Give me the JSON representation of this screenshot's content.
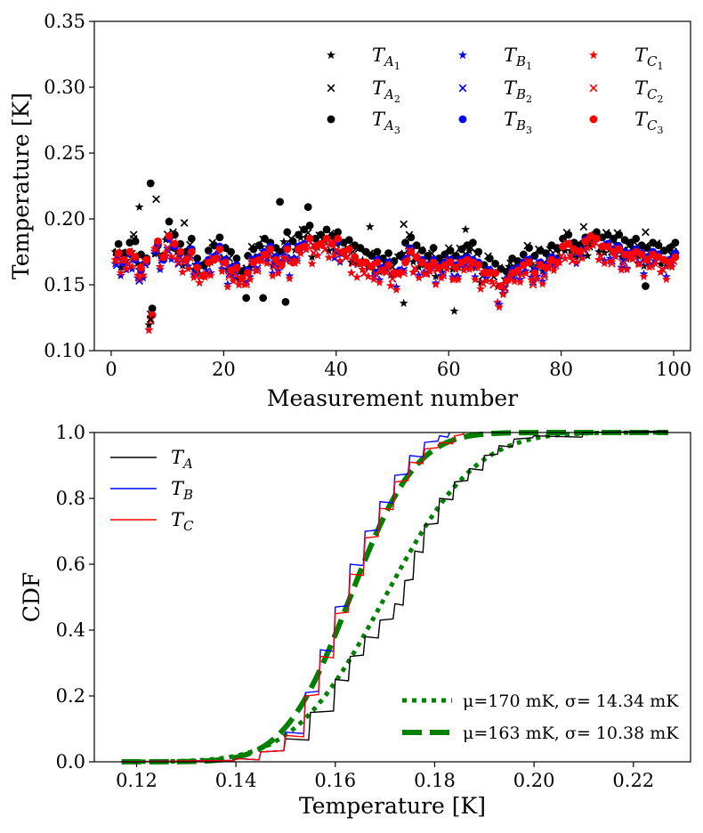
{
  "chart_data": [
    {
      "type": "scatter",
      "xlabel": "Measurement number",
      "ylabel": "Temperature [K]",
      "xlim": [
        -3,
        103
      ],
      "ylim": [
        0.1,
        0.35
      ],
      "xticks": [
        0,
        20,
        40,
        60,
        80,
        100
      ],
      "yticks": [
        0.1,
        0.15,
        0.2,
        0.25,
        0.3,
        0.35
      ],
      "xtick_labels": [
        "0",
        "20",
        "40",
        "60",
        "80",
        "100"
      ],
      "ytick_labels": [
        "0.10",
        "0.15",
        "0.20",
        "0.25",
        "0.30",
        "0.35"
      ],
      "legend": [
        {
          "sym": "T",
          "sub": "A",
          "subsub": "1",
          "marker": "star",
          "color": "#000000"
        },
        {
          "sym": "T",
          "sub": "A",
          "subsub": "2",
          "marker": "x",
          "color": "#000000"
        },
        {
          "sym": "T",
          "sub": "A",
          "subsub": "3",
          "marker": "dot",
          "color": "#000000"
        },
        {
          "sym": "T",
          "sub": "B",
          "subsub": "1",
          "marker": "star",
          "color": "#0000ff"
        },
        {
          "sym": "T",
          "sub": "B",
          "subsub": "2",
          "marker": "x",
          "color": "#0000ff"
        },
        {
          "sym": "T",
          "sub": "B",
          "subsub": "3",
          "marker": "dot",
          "color": "#0000ff"
        },
        {
          "sym": "T",
          "sub": "C",
          "subsub": "1",
          "marker": "star",
          "color": "#ff0000"
        },
        {
          "sym": "T",
          "sub": "C",
          "subsub": "2",
          "marker": "x",
          "color": "#ff0000"
        },
        {
          "sym": "T",
          "sub": "C",
          "subsub": "3",
          "marker": "dot",
          "color": "#ff0000"
        }
      ],
      "series": [
        {
          "name": "A",
          "color": "#000000",
          "values": [
            0.171,
            0.164,
            0.172,
            0.173,
            0.163,
            0.16,
            0.122,
            0.17,
            0.162,
            0.188,
            0.178,
            0.171,
            0.165,
            0.175,
            0.16,
            0.155,
            0.166,
            0.17,
            0.176,
            0.168,
            0.165,
            0.16,
            0.15,
            0.162,
            0.167,
            0.17,
            0.175,
            0.172,
            0.168,
            0.165,
            0.18,
            0.173,
            0.178,
            0.182,
            0.185,
            0.175,
            0.178,
            0.182,
            0.177,
            0.18,
            0.172,
            0.174,
            0.17,
            0.168,
            0.165,
            0.162,
            0.165,
            0.16,
            0.164,
            0.158,
            0.162,
            0.172,
            0.176,
            0.17,
            0.166,
            0.162,
            0.168,
            0.16,
            0.163,
            0.166,
            0.162,
            0.167,
            0.17,
            0.172,
            0.165,
            0.155,
            0.16,
            0.156,
            0.152,
            0.15,
            0.16,
            0.158,
            0.163,
            0.168,
            0.162,
            0.166,
            0.164,
            0.17,
            0.168,
            0.175,
            0.178,
            0.172,
            0.17,
            0.176,
            0.172,
            0.18,
            0.176,
            0.178,
            0.175,
            0.178,
            0.174,
            0.172,
            0.175,
            0.17,
            0.168,
            0.172,
            0.17,
            0.166,
            0.168,
            0.172
          ],
          "offsets": [
            [
              0,
              0.004
            ],
            [
              0.006,
              -0.006
            ],
            [
              0.01,
              0
            ]
          ]
        },
        {
          "name": "B",
          "color": "#0000ff",
          "values": [
            0.162,
            0.158,
            0.165,
            0.16,
            0.152,
            0.158,
            0.118,
            0.172,
            0.16,
            0.176,
            0.17,
            0.165,
            0.16,
            0.168,
            0.156,
            0.148,
            0.16,
            0.162,
            0.17,
            0.16,
            0.154,
            0.156,
            0.146,
            0.152,
            0.16,
            0.162,
            0.166,
            0.17,
            0.162,
            0.158,
            0.17,
            0.16,
            0.17,
            0.172,
            0.176,
            0.17,
            0.172,
            0.176,
            0.172,
            0.174,
            0.165,
            0.168,
            0.162,
            0.158,
            0.158,
            0.155,
            0.16,
            0.154,
            0.158,
            0.15,
            0.152,
            0.16,
            0.168,
            0.162,
            0.16,
            0.156,
            0.16,
            0.155,
            0.158,
            0.16,
            0.156,
            0.16,
            0.162,
            0.16,
            0.158,
            0.15,
            0.152,
            0.15,
            0.14,
            0.145,
            0.152,
            0.154,
            0.158,
            0.16,
            0.152,
            0.158,
            0.156,
            0.162,
            0.16,
            0.17,
            0.172,
            0.168,
            0.165,
            0.175,
            0.178,
            0.176,
            0.17,
            0.172,
            0.168,
            0.17,
            0.166,
            0.165,
            0.168,
            0.165,
            0.162,
            0.166,
            0.164,
            0.16,
            0.16,
            0.165
          ],
          "offsets": [
            [
              0,
              0.004
            ],
            [
              0.005,
              -0.005
            ],
            [
              0.009,
              0
            ]
          ]
        },
        {
          "name": "C",
          "color": "#ff0000",
          "values": [
            0.165,
            0.16,
            0.166,
            0.162,
            0.154,
            0.16,
            0.118,
            0.174,
            0.162,
            0.178,
            0.172,
            0.166,
            0.16,
            0.166,
            0.154,
            0.148,
            0.158,
            0.16,
            0.168,
            0.158,
            0.152,
            0.154,
            0.146,
            0.15,
            0.158,
            0.16,
            0.164,
            0.168,
            0.16,
            0.156,
            0.168,
            0.158,
            0.168,
            0.17,
            0.176,
            0.17,
            0.172,
            0.176,
            0.172,
            0.176,
            0.166,
            0.168,
            0.162,
            0.158,
            0.158,
            0.155,
            0.158,
            0.152,
            0.156,
            0.15,
            0.15,
            0.158,
            0.166,
            0.162,
            0.158,
            0.155,
            0.158,
            0.154,
            0.156,
            0.158,
            0.154,
            0.158,
            0.16,
            0.158,
            0.156,
            0.15,
            0.15,
            0.15,
            0.14,
            0.144,
            0.15,
            0.152,
            0.156,
            0.158,
            0.15,
            0.156,
            0.154,
            0.16,
            0.158,
            0.17,
            0.172,
            0.168,
            0.166,
            0.174,
            0.178,
            0.176,
            0.17,
            0.17,
            0.166,
            0.168,
            0.164,
            0.164,
            0.166,
            0.164,
            0.16,
            0.164,
            0.162,
            0.16,
            0.158,
            0.162
          ],
          "offsets": [
            [
              0,
              0.004
            ],
            [
              0.005,
              -0.005
            ],
            [
              0.009,
              0
            ]
          ]
        }
      ],
      "outliers": [
        {
          "x": 4,
          "y": 0.188,
          "m": "x",
          "c": "#000000"
        },
        {
          "x": 5,
          "y": 0.209,
          "m": "star",
          "c": "#000000"
        },
        {
          "x": 7,
          "y": 0.227,
          "m": "dot",
          "c": "#000000"
        },
        {
          "x": 8,
          "y": 0.215,
          "m": "x",
          "c": "#000000"
        },
        {
          "x": 7,
          "y": 0.124,
          "m": "x",
          "c": "#000000"
        },
        {
          "x": 13,
          "y": 0.197,
          "m": "x",
          "c": "#000000"
        },
        {
          "x": 30,
          "y": 0.213,
          "m": "dot",
          "c": "#000000"
        },
        {
          "x": 35,
          "y": 0.209,
          "m": "dot",
          "c": "#000000"
        },
        {
          "x": 31,
          "y": 0.137,
          "m": "dot",
          "c": "#000000"
        },
        {
          "x": 27,
          "y": 0.14,
          "m": "dot",
          "c": "#000000"
        },
        {
          "x": 24,
          "y": 0.14,
          "m": "dot",
          "c": "#000000"
        },
        {
          "x": 52,
          "y": 0.196,
          "m": "x",
          "c": "#000000"
        },
        {
          "x": 52,
          "y": 0.136,
          "m": "star",
          "c": "#000000"
        },
        {
          "x": 61,
          "y": 0.13,
          "m": "star",
          "c": "#000000"
        },
        {
          "x": 63,
          "y": 0.192,
          "m": "star",
          "c": "#000000"
        },
        {
          "x": 95,
          "y": 0.149,
          "m": "dot",
          "c": "#000000"
        },
        {
          "x": 95,
          "y": 0.19,
          "m": "x",
          "c": "#000000"
        },
        {
          "x": 84,
          "y": 0.194,
          "m": "x",
          "c": "#000000"
        },
        {
          "x": 46,
          "y": 0.194,
          "m": "star",
          "c": "#000000"
        },
        {
          "x": 69,
          "y": 0.135,
          "m": "star",
          "c": "#0000ff"
        },
        {
          "x": 69,
          "y": 0.133,
          "m": "star",
          "c": "#ff0000"
        }
      ]
    },
    {
      "type": "line",
      "xlabel": "Temperature [K]",
      "ylabel": "CDF",
      "xlim": [
        0.1115,
        0.2315
      ],
      "ylim": [
        0.0,
        1.0
      ],
      "xticks": [
        0.12,
        0.14,
        0.16,
        0.18,
        0.2,
        0.22
      ],
      "yticks": [
        0.0,
        0.2,
        0.4,
        0.6,
        0.8,
        1.0
      ],
      "xtick_labels": [
        "0.12",
        "0.14",
        "0.16",
        "0.18",
        "0.20",
        "0.22"
      ],
      "ytick_labels": [
        "0.0",
        "0.2",
        "0.4",
        "0.6",
        "0.8",
        "1.0"
      ],
      "legend_left": [
        {
          "sym": "T",
          "sub": "A",
          "color": "#000000"
        },
        {
          "sym": "T",
          "sub": "B",
          "color": "#0000ff"
        },
        {
          "sym": "T",
          "sub": "C",
          "color": "#ff0000"
        }
      ],
      "legend_right": [
        {
          "label": "μ=170 mK, σ= 14.34 mK",
          "style": "dotted"
        },
        {
          "label": "μ=163 mK, σ= 10.38 mK",
          "style": "dashed"
        }
      ],
      "empirical": [
        {
          "name": "T_A",
          "color": "#000000",
          "points": [
            [
              0.117,
              0
            ],
            [
              0.14,
              0.01
            ],
            [
              0.145,
              0.03
            ],
            [
              0.15,
              0.07
            ],
            [
              0.155,
              0.15
            ],
            [
              0.16,
              0.25
            ],
            [
              0.163,
              0.32
            ],
            [
              0.166,
              0.38
            ],
            [
              0.169,
              0.43
            ],
            [
              0.172,
              0.48
            ],
            [
              0.174,
              0.55
            ],
            [
              0.176,
              0.64
            ],
            [
              0.178,
              0.72
            ],
            [
              0.181,
              0.8
            ],
            [
              0.184,
              0.85
            ],
            [
              0.187,
              0.89
            ],
            [
              0.19,
              0.93
            ],
            [
              0.193,
              0.96
            ],
            [
              0.196,
              0.98
            ],
            [
              0.2,
              0.99
            ],
            [
              0.21,
              1.0
            ],
            [
              0.227,
              1.0
            ]
          ]
        },
        {
          "name": "T_B",
          "color": "#0000ff",
          "points": [
            [
              0.117,
              0
            ],
            [
              0.14,
              0.01
            ],
            [
              0.145,
              0.03
            ],
            [
              0.15,
              0.09
            ],
            [
              0.154,
              0.21
            ],
            [
              0.157,
              0.34
            ],
            [
              0.16,
              0.47
            ],
            [
              0.163,
              0.6
            ],
            [
              0.166,
              0.7
            ],
            [
              0.169,
              0.79
            ],
            [
              0.172,
              0.87
            ],
            [
              0.175,
              0.93
            ],
            [
              0.178,
              0.97
            ],
            [
              0.181,
              0.99
            ],
            [
              0.183,
              1.0
            ]
          ]
        },
        {
          "name": "T_C",
          "color": "#ff0000",
          "points": [
            [
              0.117,
              0
            ],
            [
              0.14,
              0.01
            ],
            [
              0.145,
              0.03
            ],
            [
              0.15,
              0.08
            ],
            [
              0.154,
              0.2
            ],
            [
              0.157,
              0.32
            ],
            [
              0.16,
              0.45
            ],
            [
              0.163,
              0.57
            ],
            [
              0.166,
              0.68
            ],
            [
              0.169,
              0.77
            ],
            [
              0.172,
              0.85
            ],
            [
              0.175,
              0.91
            ],
            [
              0.178,
              0.95
            ],
            [
              0.181,
              0.97
            ],
            [
              0.184,
              0.99
            ],
            [
              0.186,
              1.0
            ]
          ]
        }
      ],
      "normal_fits": [
        {
          "mu": 0.17,
          "sigma": 0.01434,
          "style": "dotted",
          "color": "#008000"
        },
        {
          "mu": 0.163,
          "sigma": 0.01038,
          "style": "dashed",
          "color": "#008000"
        }
      ]
    }
  ]
}
